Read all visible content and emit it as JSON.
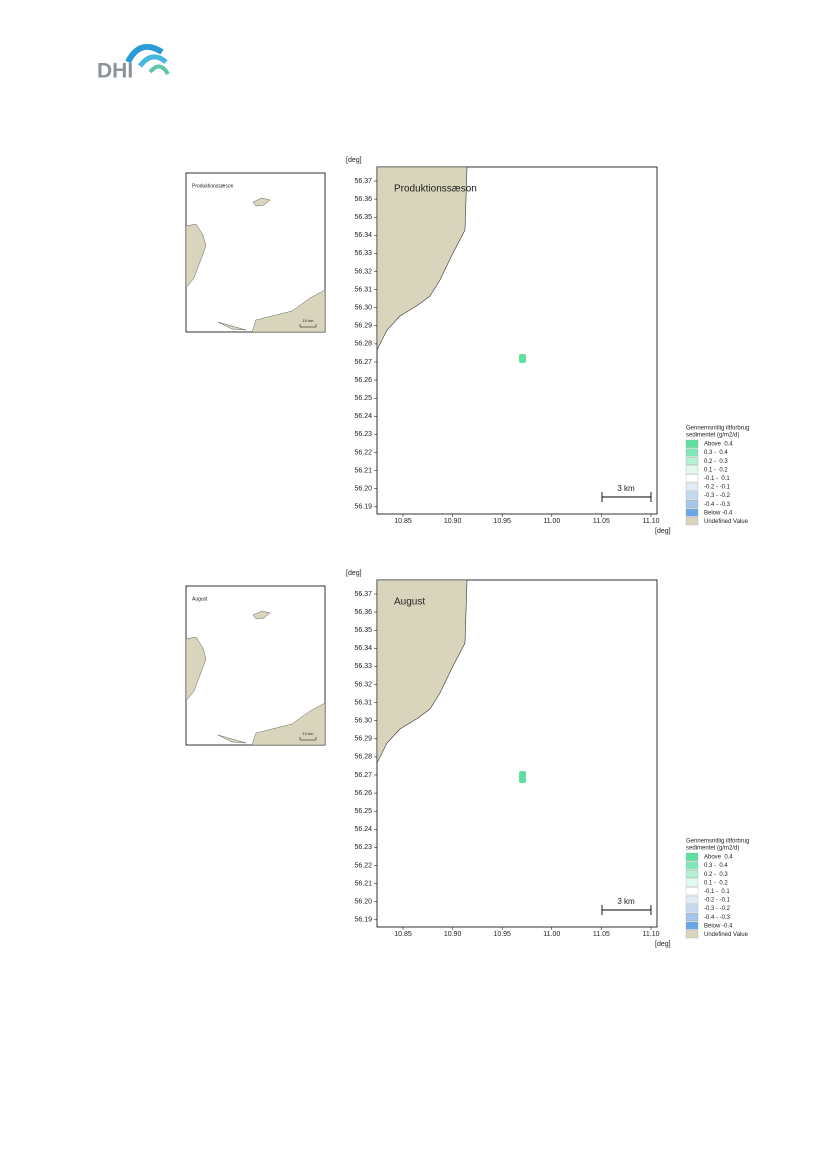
{
  "header": {
    "logo": "DHI"
  },
  "figures": [
    {
      "inset": {
        "label": "Produktionssæson",
        "scale": "10 km"
      },
      "map": {
        "title": "Produktionssæson",
        "y_unit": "[deg]",
        "x_unit": "[deg]",
        "yticks": [
          "56.37",
          "56.36",
          "56.35",
          "56.34",
          "56.33",
          "56.32",
          "56.31",
          "56.30",
          "56.29",
          "56.28",
          "56.27",
          "56.26",
          "56.25",
          "56.24",
          "56.23",
          "56.22",
          "56.21",
          "56.20",
          "56.19"
        ],
        "xticks": [
          "10.85",
          "10.90",
          "10.95",
          "11.00",
          "11.05",
          "11.10"
        ],
        "scale_bar": "3 km"
      },
      "legend": {
        "title": [
          "Gennemsnitlig iltforbrug",
          "sedimentet (g/m2/d)"
        ],
        "items": [
          {
            "label": "Above  0.4",
            "color": "#5fe0a0"
          },
          {
            "label": "0.3 -  0.4",
            "color": "#80e8b4"
          },
          {
            "label": "0.2 -  0.3",
            "color": "#b4f2d2"
          },
          {
            "label": "0.1 -  0.2",
            "color": "#e2f9ee"
          },
          {
            "label": "-0.1 -  0.1",
            "color": "#ffffff"
          },
          {
            "label": "-0.2 - -0.1",
            "color": "#e2ecf8"
          },
          {
            "label": "-0.3 - -0.2",
            "color": "#c4d9f1"
          },
          {
            "label": "-0.4 - -0.3",
            "color": "#a4c5ec"
          },
          {
            "label": "Below -0.4",
            "color": "#6aa6e6"
          },
          {
            "label": "Undefined Value",
            "color": "#d9d5bd"
          }
        ]
      }
    },
    {
      "inset": {
        "label": "August",
        "scale": "10 km"
      },
      "map": {
        "title": "August",
        "y_unit": "[deg]",
        "x_unit": "[deg]",
        "yticks": [
          "56.37",
          "56.36",
          "56.35",
          "56.34",
          "56.33",
          "56.32",
          "56.31",
          "56.30",
          "56.29",
          "56.28",
          "56.27",
          "56.26",
          "56.25",
          "56.24",
          "56.23",
          "56.22",
          "56.21",
          "56.20",
          "56.19"
        ],
        "xticks": [
          "10.85",
          "10.90",
          "10.95",
          "11.00",
          "11.05",
          "11.10"
        ],
        "scale_bar": "3 km"
      },
      "legend": {
        "title": [
          "Gennemsnitlig iltforbrug",
          "sedimentet (g/m2/d)"
        ],
        "items": [
          {
            "label": "Above  0.4",
            "color": "#5fe0a0"
          },
          {
            "label": "0.3 -  0.4",
            "color": "#80e8b4"
          },
          {
            "label": "0.2 -  0.3",
            "color": "#b4f2d2"
          },
          {
            "label": "0.1 -  0.2",
            "color": "#e2f9ee"
          },
          {
            "label": "-0.1 -  0.1",
            "color": "#ffffff"
          },
          {
            "label": "-0.2 - -0.1",
            "color": "#e2ecf8"
          },
          {
            "label": "-0.3 - -0.2",
            "color": "#c4d9f1"
          },
          {
            "label": "-0.4 - -0.3",
            "color": "#a4c5ec"
          },
          {
            "label": "Below -0.4",
            "color": "#6aa6e6"
          },
          {
            "label": "Undefined Value",
            "color": "#d9d5bd"
          }
        ]
      }
    }
  ]
}
